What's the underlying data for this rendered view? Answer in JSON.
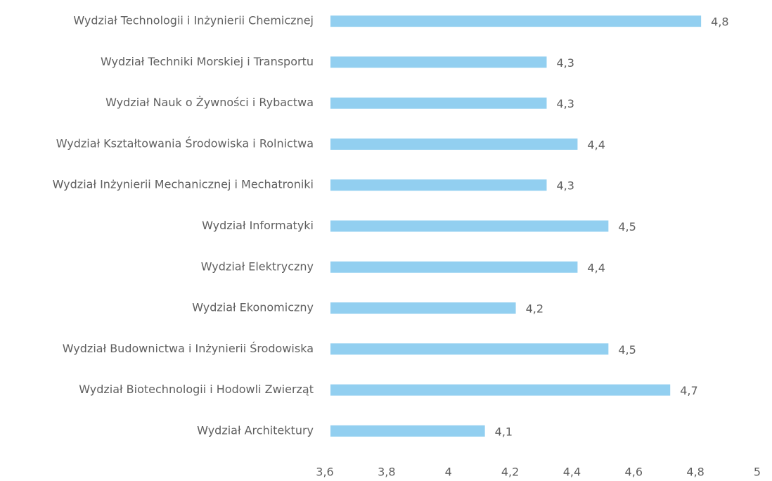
{
  "chart_data": {
    "type": "bar",
    "orientation": "horizontal",
    "categories": [
      "Wydział Technologii i Inżynierii Chemicznej",
      "Wydział Techniki Morskiej i Transportu",
      "Wydział Nauk o Żywności i Rybactwa",
      "Wydział Kształtowania Środowiska i Rolnictwa",
      "Wydział Inżynierii Mechanicznej i Mechatroniki",
      "Wydział Informatyki",
      "Wydział Elektryczny",
      "Wydział Ekonomiczny",
      "Wydział Budownictwa i Inżynierii Środowiska",
      "Wydział Biotechnologii i Hodowli Zwierząt",
      "Wydział Architektury"
    ],
    "values": [
      4.8,
      4.3,
      4.3,
      4.4,
      4.3,
      4.5,
      4.4,
      4.2,
      4.5,
      4.7,
      4.1
    ],
    "value_labels": [
      "4,8",
      "4,3",
      "4,3",
      "4,4",
      "4,3",
      "4,5",
      "4,4",
      "4,2",
      "4,5",
      "4,7",
      "4,1"
    ],
    "color": "#92cff0",
    "xlim": [
      3.6,
      5
    ],
    "xticks": [
      {
        "value": 3.6,
        "label": "3,6"
      },
      {
        "value": 3.8,
        "label": "3,8"
      },
      4,
      {
        "value": 4.2,
        "label": "4,2"
      },
      {
        "value": 4.4,
        "label": "4,4"
      },
      {
        "value": 4.6,
        "label": "4,6"
      },
      {
        "value": 4.8,
        "label": "4,8"
      },
      5
    ],
    "grid": false
  }
}
